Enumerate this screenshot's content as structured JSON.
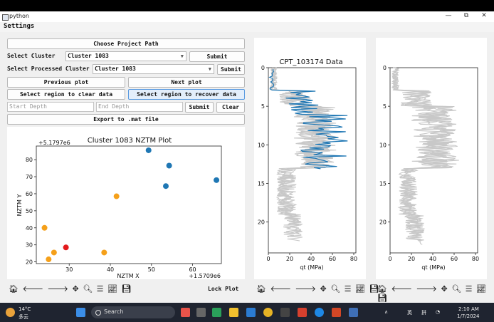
{
  "window": {
    "title": "python",
    "controls": [
      "—",
      "⧉",
      "✕"
    ]
  },
  "menu": {
    "settings": "Settings"
  },
  "controls": {
    "choose_path": "Choose Project Path",
    "select_cluster_label": "Select Cluster",
    "cluster_value": "Cluster 1083",
    "submit": "Submit",
    "select_processed_label": "Select Processed Cluster",
    "processed_value": "Cluster 1083",
    "previous_plot": "Previous plot",
    "next_plot": "Next plot",
    "clear_region": "Select region to clear data",
    "recover_region": "Select region to recover data",
    "start_depth_placeholder": "Start Depth",
    "end_depth_placeholder": "End Depth",
    "submit2": "Submit",
    "clear": "Clear",
    "export": "Export to .mat file",
    "lock_plot": "Lock Plot"
  },
  "scatter_chart": {
    "type": "scatter",
    "title": "Cluster 1083 NZTM Plot",
    "xlabel": "NZTM X",
    "ylabel": "NZTM Y",
    "x_offset_label": "+1.5709e6",
    "y_offset_label": "+5.1797e6",
    "xlim": [
      22,
      67
    ],
    "ylim": [
      19,
      88
    ],
    "xticks": [
      30,
      40,
      50,
      60
    ],
    "yticks": [
      20,
      30,
      40,
      50,
      60,
      70,
      80
    ],
    "series": [
      {
        "color": "#1f77b4",
        "points": [
          [
            49.3,
            85.5
          ],
          [
            54.3,
            76.5
          ],
          [
            53.5,
            64.5
          ],
          [
            65.8,
            68
          ]
        ]
      },
      {
        "color": "#f5a01a",
        "points": [
          [
            41.5,
            58.5
          ],
          [
            24.0,
            40
          ],
          [
            26.3,
            25.5
          ],
          [
            38.5,
            25.5
          ],
          [
            25.0,
            21.5
          ]
        ]
      },
      {
        "color": "#e31a1c",
        "points": [
          [
            29.2,
            28.5
          ]
        ]
      }
    ]
  },
  "cpt_chart": {
    "type": "line",
    "title": "CPT_103174 Data",
    "xlabel": "qt (MPa)",
    "xlim": [
      0,
      82
    ],
    "ylim": [
      24,
      0
    ],
    "xticks": [
      0,
      20,
      40,
      60,
      80
    ],
    "yticks": [
      0,
      5,
      10,
      15,
      20
    ],
    "colors": {
      "highlight": "#1f77b4",
      "background": "#c8c8c8"
    }
  },
  "cpt_chart2": {
    "type": "line",
    "xlabel": "qt (MPa)",
    "xlim": [
      0,
      82
    ],
    "ylim": [
      24,
      0
    ],
    "xticks": [
      0,
      20,
      40,
      60,
      80
    ],
    "yticks": [
      0,
      5,
      10,
      15,
      20
    ],
    "colors": {
      "background": "#c8c8c8"
    }
  },
  "taskbar": {
    "weather_temp": "14°C",
    "weather_desc": "多云",
    "search": "Search",
    "lang": "英",
    "ime": "拼",
    "time": "2:10 AM",
    "date": "1/7/2024"
  }
}
